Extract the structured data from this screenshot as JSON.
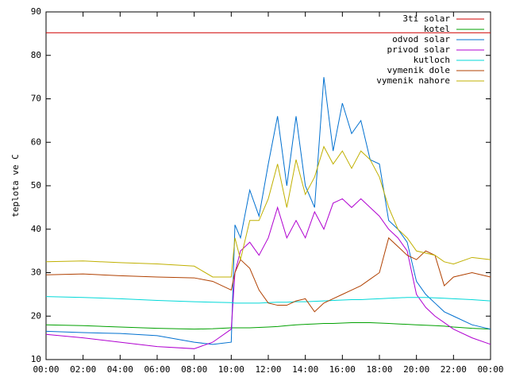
{
  "chart_data": {
    "type": "line",
    "y_label": "teplota ve C",
    "x": [
      0,
      2,
      4,
      6,
      8,
      9,
      10,
      10.2,
      10.5,
      11,
      11.5,
      12,
      12.5,
      13,
      13.5,
      14,
      14.5,
      15,
      15.5,
      16,
      16.5,
      17,
      17.5,
      18,
      18.5,
      19,
      19.5,
      20,
      20.5,
      21,
      21.5,
      22,
      23,
      24
    ],
    "xlim": [
      0,
      24
    ],
    "xticks": [
      {
        "value": 0,
        "label": "00:00"
      },
      {
        "value": 2,
        "label": "02:00"
      },
      {
        "value": 4,
        "label": "04:00"
      },
      {
        "value": 6,
        "label": "06:00"
      },
      {
        "value": 8,
        "label": "08:00"
      },
      {
        "value": 10,
        "label": "10:00"
      },
      {
        "value": 12,
        "label": "12:00"
      },
      {
        "value": 14,
        "label": "14:00"
      },
      {
        "value": 16,
        "label": "16:00"
      },
      {
        "value": 18,
        "label": "18:00"
      },
      {
        "value": 20,
        "label": "20:00"
      },
      {
        "value": 22,
        "label": "22:00"
      },
      {
        "value": 24,
        "label": "00:00"
      }
    ],
    "ylim": [
      10,
      90
    ],
    "yticks": [
      10,
      20,
      30,
      40,
      50,
      60,
      70,
      80,
      90
    ],
    "legend": "top-right",
    "series": [
      {
        "name": "3ti solar",
        "color": "#d00000",
        "values": [
          85.2,
          85.2,
          85.2,
          85.2,
          85.2,
          85.2,
          85.2,
          85.2,
          85.2,
          85.2,
          85.2,
          85.2,
          85.2,
          85.2,
          85.2,
          85.2,
          85.2,
          85.2,
          85.2,
          85.2,
          85.2,
          85.2,
          85.2,
          85.2,
          85.2,
          85.2,
          85.2,
          85.2,
          85.2,
          85.2,
          85.2,
          85.2,
          85.2,
          85.2
        ]
      },
      {
        "name": "kotel",
        "color": "#00a000",
        "values": [
          18,
          17.8,
          17.5,
          17.2,
          17,
          17.1,
          17.3,
          17.3,
          17.3,
          17.3,
          17.4,
          17.5,
          17.6,
          17.8,
          18,
          18.1,
          18.2,
          18.3,
          18.3,
          18.4,
          18.5,
          18.5,
          18.5,
          18.4,
          18.3,
          18.2,
          18.1,
          18,
          17.9,
          17.8,
          17.7,
          17.5,
          17.2,
          17
        ]
      },
      {
        "name": "odvod solar",
        "color": "#0070d0",
        "values": [
          16.5,
          16.2,
          16,
          15.5,
          14,
          13.5,
          14,
          41,
          38,
          49,
          43,
          55,
          66,
          50,
          66,
          50,
          45,
          75,
          58,
          69,
          62,
          65,
          56,
          55,
          42,
          40,
          37,
          28,
          25,
          23,
          21,
          20,
          18,
          17
        ]
      },
      {
        "name": "privod solar",
        "color": "#b000d0",
        "values": [
          15.8,
          15,
          14,
          13,
          12.5,
          14,
          17,
          30,
          35,
          37,
          34,
          38,
          45,
          38,
          42,
          38,
          44,
          40,
          46,
          47,
          45,
          47,
          45,
          43,
          40,
          38,
          35,
          25,
          22,
          20,
          18.5,
          17,
          15,
          13.5
        ]
      },
      {
        "name": "kutloch",
        "color": "#00d8d8",
        "values": [
          24.5,
          24.3,
          24,
          23.6,
          23.3,
          23.2,
          23.1,
          23,
          23,
          23,
          23,
          23.1,
          23.2,
          23.2,
          23.3,
          23.3,
          23.4,
          23.5,
          23.6,
          23.7,
          23.8,
          23.8,
          23.9,
          24,
          24.1,
          24.2,
          24.3,
          24.3,
          24.3,
          24.2,
          24.1,
          24,
          23.8,
          23.5
        ]
      },
      {
        "name": "vymenik dole",
        "color": "#b04000",
        "values": [
          29.5,
          29.7,
          29.3,
          29,
          28.8,
          28,
          26,
          30,
          33,
          31,
          26,
          23,
          22.5,
          22.5,
          23.5,
          24,
          21,
          23,
          24,
          25,
          26,
          27,
          28.5,
          30,
          38,
          36,
          34,
          33,
          35,
          34,
          27,
          29,
          30,
          29
        ]
      },
      {
        "name": "vymenik nahore",
        "color": "#c0b000",
        "values": [
          32.5,
          32.7,
          32.3,
          32,
          31.5,
          29,
          29,
          38,
          33,
          42,
          42,
          47,
          55,
          45,
          56,
          48,
          52,
          59,
          55,
          58,
          54,
          58,
          56,
          52,
          45,
          40,
          38,
          35,
          34.5,
          34,
          32.5,
          32,
          33.5,
          33
        ]
      }
    ]
  }
}
